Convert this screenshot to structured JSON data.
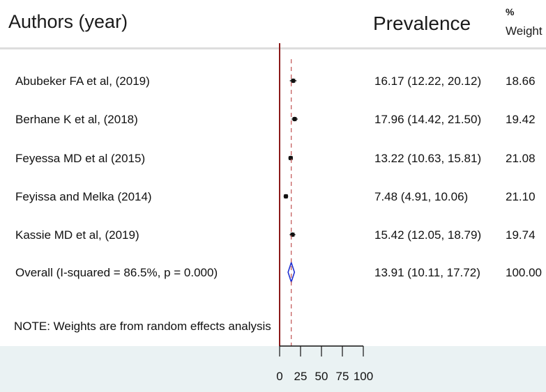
{
  "header": {
    "authors": "Authors (year)",
    "prevalence": "Prevalence",
    "weight_pct": "%",
    "weight": "Weight"
  },
  "note": "NOTE: Weights are from random effects analysis",
  "colors": {
    "null_line": "#8b1a1a",
    "overall_line": "#c05050",
    "diamond": "#1f2fd0",
    "point": "#111111",
    "axis_band": "#eaf2f3"
  },
  "chart_data": {
    "type": "forest",
    "xlim": [
      0,
      100
    ],
    "xticks": [
      "0",
      "25",
      "50",
      "75",
      "100"
    ],
    "null_value": 0,
    "studies": [
      {
        "label": "Abubeker FA et al, (2019)",
        "estimate": 16.17,
        "lower": 12.22,
        "upper": 20.12,
        "ci_text": "16.17 (12.22, 20.12)",
        "weight": "18.66"
      },
      {
        "label": "Berhane K et al, (2018)",
        "estimate": 17.96,
        "lower": 14.42,
        "upper": 21.5,
        "ci_text": "17.96 (14.42, 21.50)",
        "weight": "19.42"
      },
      {
        "label": "Feyessa MD et al (2015)",
        "estimate": 13.22,
        "lower": 10.63,
        "upper": 15.81,
        "ci_text": "13.22 (10.63, 15.81)",
        "weight": "21.08"
      },
      {
        "label": "Feyissa and Melka (2014)",
        "estimate": 7.48,
        "lower": 4.91,
        "upper": 10.06,
        "ci_text": "7.48 (4.91, 10.06)",
        "weight": "21.10"
      },
      {
        "label": "Kassie MD et al, (2019)",
        "estimate": 15.42,
        "lower": 12.05,
        "upper": 18.79,
        "ci_text": "15.42 (12.05, 18.79)",
        "weight": "19.74"
      }
    ],
    "overall": {
      "label": "Overall  (I-squared = 86.5%, p = 0.000)",
      "estimate": 13.91,
      "lower": 10.11,
      "upper": 17.72,
      "ci_text": "13.91 (10.11, 17.72)",
      "weight": "100.00"
    }
  }
}
